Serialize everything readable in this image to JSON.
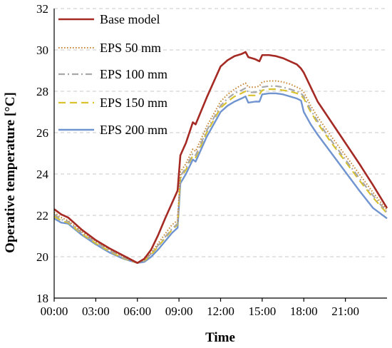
{
  "chart_data": {
    "type": "line",
    "xlabel": "Time",
    "ylabel": "Operative temperature [°C]",
    "xlim": [
      0,
      24
    ],
    "ylim": [
      18,
      32
    ],
    "xticks": [
      {
        "v": 0,
        "label": "00:00"
      },
      {
        "v": 3,
        "label": "03:00"
      },
      {
        "v": 6,
        "label": "06:00"
      },
      {
        "v": 9,
        "label": "09:00"
      },
      {
        "v": 12,
        "label": "12:00"
      },
      {
        "v": 15,
        "label": "15:00"
      },
      {
        "v": 18,
        "label": "18:00"
      },
      {
        "v": 21,
        "label": "21:00"
      }
    ],
    "yticks": [
      18,
      20,
      22,
      24,
      26,
      28,
      30,
      32
    ],
    "grid": "horizontal-dashed",
    "legend_position": "top-left",
    "series": [
      {
        "name": "Base model",
        "color": "#a52a24",
        "dash": "solid",
        "x": [
          0,
          0.5,
          1,
          2,
          3,
          4,
          5,
          6,
          6.5,
          7,
          7.5,
          8,
          8.5,
          8.9,
          9.1,
          9.5,
          10,
          10.2,
          11,
          12,
          12.5,
          13,
          13.5,
          13.8,
          14,
          14.5,
          14.8,
          15,
          15.5,
          16,
          16.5,
          17,
          17.5,
          17.8,
          18,
          18.5,
          19,
          20,
          21,
          22,
          23,
          24
        ],
        "y": [
          22.3,
          22.05,
          21.9,
          21.3,
          20.8,
          20.4,
          20.05,
          19.7,
          19.9,
          20.35,
          21.05,
          21.85,
          22.6,
          23.2,
          24.9,
          25.5,
          26.5,
          26.4,
          27.7,
          29.2,
          29.5,
          29.7,
          29.8,
          29.9,
          29.65,
          29.55,
          29.45,
          29.75,
          29.75,
          29.7,
          29.6,
          29.45,
          29.3,
          29.1,
          28.9,
          28.2,
          27.5,
          26.5,
          25.5,
          24.5,
          23.45,
          22.35
        ]
      },
      {
        "name": "EPS 50 mm",
        "color": "#c78a3a",
        "dash": "dotted",
        "x": [
          0,
          0.5,
          1,
          2,
          3,
          4,
          5,
          6,
          6.5,
          7,
          7.5,
          8,
          8.5,
          8.9,
          9.1,
          9.5,
          10,
          10.2,
          11,
          12,
          12.5,
          13,
          13.5,
          13.8,
          14,
          14.5,
          14.8,
          15,
          15.5,
          16,
          16.5,
          17,
          17.5,
          17.8,
          18,
          18.5,
          19,
          20,
          21,
          22,
          23,
          24
        ],
        "y": [
          22.15,
          21.9,
          21.75,
          21.2,
          20.75,
          20.35,
          20.0,
          19.7,
          19.85,
          20.2,
          20.65,
          21.1,
          21.55,
          21.75,
          24.1,
          24.5,
          25.2,
          25.1,
          26.3,
          27.5,
          27.85,
          28.1,
          28.3,
          28.4,
          28.2,
          28.2,
          28.25,
          28.45,
          28.5,
          28.5,
          28.45,
          28.35,
          28.2,
          28.1,
          27.95,
          27.3,
          26.75,
          25.8,
          24.9,
          24.0,
          23.1,
          22.25
        ]
      },
      {
        "name": "EPS 100 mm",
        "color": "#a8a8a8",
        "dash": "dashdot",
        "x": [
          0,
          0.5,
          1,
          2,
          3,
          4,
          5,
          6,
          6.5,
          7,
          7.5,
          8,
          8.5,
          8.9,
          9.1,
          9.5,
          10,
          10.2,
          11,
          12,
          12.5,
          13,
          13.5,
          13.8,
          14,
          14.5,
          14.8,
          15,
          15.5,
          16,
          16.5,
          17,
          17.5,
          17.8,
          18,
          18.5,
          19,
          20,
          21,
          22,
          23,
          24
        ],
        "y": [
          22.05,
          21.8,
          21.7,
          21.15,
          20.7,
          20.3,
          19.95,
          19.7,
          19.82,
          20.15,
          20.55,
          20.95,
          21.35,
          21.6,
          23.9,
          24.3,
          25.0,
          24.9,
          26.1,
          27.3,
          27.65,
          27.9,
          28.05,
          28.15,
          27.95,
          27.95,
          28.0,
          28.2,
          28.25,
          28.25,
          28.2,
          28.1,
          28.0,
          27.9,
          27.75,
          27.1,
          26.55,
          25.6,
          24.7,
          23.8,
          22.95,
          22.15
        ]
      },
      {
        "name": "EPS 150 mm",
        "color": "#d9c22e",
        "dash": "dashed",
        "x": [
          0,
          0.5,
          1,
          2,
          3,
          4,
          5,
          6,
          6.5,
          7,
          7.5,
          8,
          8.5,
          8.9,
          9.1,
          9.5,
          10,
          10.2,
          11,
          12,
          12.5,
          13,
          13.5,
          13.8,
          14,
          14.5,
          14.8,
          15,
          15.5,
          16,
          16.5,
          17,
          17.5,
          17.8,
          18,
          18.5,
          19,
          20,
          21,
          22,
          23,
          24
        ],
        "y": [
          21.95,
          21.75,
          21.65,
          21.1,
          20.65,
          20.25,
          19.92,
          19.7,
          19.8,
          20.1,
          20.5,
          20.9,
          21.3,
          21.55,
          23.8,
          24.2,
          24.9,
          24.8,
          26.0,
          27.2,
          27.5,
          27.75,
          27.9,
          28.0,
          27.8,
          27.8,
          27.85,
          28.05,
          28.1,
          28.1,
          28.05,
          28.0,
          27.9,
          27.8,
          27.65,
          27.0,
          26.45,
          25.5,
          24.6,
          23.7,
          22.85,
          22.1
        ]
      },
      {
        "name": "EPS 200 mm",
        "color": "#6f94cf",
        "dash": "solid",
        "x": [
          0,
          0.5,
          1,
          2,
          3,
          4,
          5,
          6,
          6.5,
          7,
          7.5,
          8,
          8.5,
          8.9,
          9.1,
          9.5,
          10,
          10.2,
          11,
          12,
          12.5,
          13,
          13.5,
          13.8,
          14,
          14.5,
          14.8,
          15,
          15.5,
          16,
          16.5,
          17,
          17.5,
          17.8,
          18,
          18.5,
          19,
          20,
          21,
          22,
          23,
          24
        ],
        "y": [
          21.85,
          21.65,
          21.6,
          21.05,
          20.6,
          20.2,
          19.9,
          19.7,
          19.75,
          20.0,
          20.35,
          20.75,
          21.15,
          21.4,
          23.55,
          24.0,
          24.7,
          24.6,
          25.8,
          27.0,
          27.3,
          27.5,
          27.65,
          27.75,
          27.45,
          27.5,
          27.5,
          27.85,
          27.9,
          27.9,
          27.85,
          27.75,
          27.65,
          27.55,
          27.0,
          26.4,
          25.9,
          25.0,
          24.1,
          23.2,
          22.35,
          21.85
        ]
      }
    ]
  }
}
